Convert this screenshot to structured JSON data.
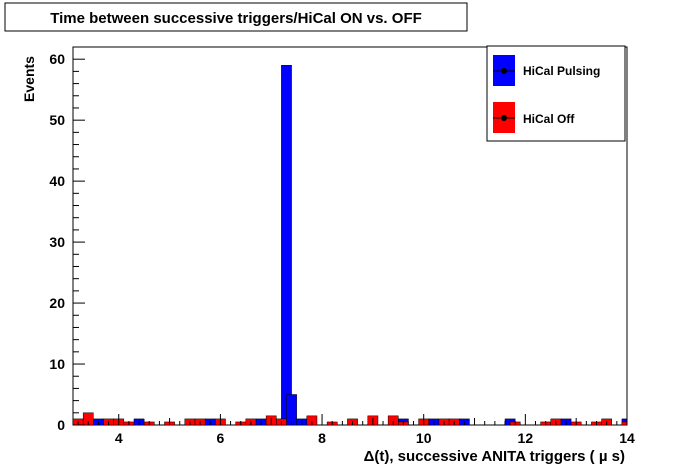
{
  "chart_data": {
    "type": "bar",
    "title": "Time between successive triggers/HiCal ON vs. OFF",
    "xlabel": "Δ(t), successive ANITA triggers (   µ s)",
    "ylabel": "Events",
    "xlim": [
      3.1,
      14.0
    ],
    "ylim": [
      0,
      62
    ],
    "bin_width": 0.2,
    "x_major_ticks": [
      4,
      6,
      8,
      10,
      12,
      14
    ],
    "x_tick_labels": [
      "4",
      "6",
      "8",
      "10",
      "12",
      "14"
    ],
    "y_major_ticks": [
      0,
      10,
      20,
      30,
      40,
      50,
      60
    ],
    "y_tick_labels": [
      "0",
      "10",
      "20",
      "30",
      "40",
      "50",
      "60"
    ],
    "legend_position": "top-right",
    "series": [
      {
        "name": "HiCal Pulsing",
        "color": "#0000ff",
        "bins": [
          {
            "x": 3.5,
            "y": 1
          },
          {
            "x": 4.3,
            "y": 1
          },
          {
            "x": 5.7,
            "y": 1
          },
          {
            "x": 6.7,
            "y": 1
          },
          {
            "x": 7.2,
            "y": 59
          },
          {
            "x": 7.3,
            "y": 5
          },
          {
            "x": 7.5,
            "y": 1
          },
          {
            "x": 9.5,
            "y": 1
          },
          {
            "x": 10.1,
            "y": 1
          },
          {
            "x": 10.7,
            "y": 1
          },
          {
            "x": 11.6,
            "y": 1
          },
          {
            "x": 12.7,
            "y": 1
          },
          {
            "x": 13.9,
            "y": 1
          }
        ]
      },
      {
        "name": "HiCal Off",
        "color": "#ff0000",
        "bins": [
          {
            "x": 3.1,
            "y": 1
          },
          {
            "x": 3.3,
            "y": 2
          },
          {
            "x": 3.7,
            "y": 1
          },
          {
            "x": 3.9,
            "y": 1
          },
          {
            "x": 4.1,
            "y": 0.5
          },
          {
            "x": 4.5,
            "y": 0.5
          },
          {
            "x": 4.9,
            "y": 0.5
          },
          {
            "x": 5.3,
            "y": 1
          },
          {
            "x": 5.5,
            "y": 1
          },
          {
            "x": 5.9,
            "y": 1
          },
          {
            "x": 6.3,
            "y": 0.5
          },
          {
            "x": 6.5,
            "y": 1
          },
          {
            "x": 6.9,
            "y": 1.5
          },
          {
            "x": 7.1,
            "y": 1
          },
          {
            "x": 7.7,
            "y": 1.5
          },
          {
            "x": 8.1,
            "y": 0.5
          },
          {
            "x": 8.5,
            "y": 1
          },
          {
            "x": 8.9,
            "y": 1.5
          },
          {
            "x": 9.3,
            "y": 1.5
          },
          {
            "x": 9.5,
            "y": 0.5
          },
          {
            "x": 9.9,
            "y": 1
          },
          {
            "x": 10.3,
            "y": 1
          },
          {
            "x": 10.5,
            "y": 1
          },
          {
            "x": 11.7,
            "y": 0.5
          },
          {
            "x": 12.3,
            "y": 0.5
          },
          {
            "x": 12.5,
            "y": 1
          },
          {
            "x": 12.9,
            "y": 0.5
          },
          {
            "x": 13.3,
            "y": 0.5
          },
          {
            "x": 13.5,
            "y": 1
          },
          {
            "x": 13.9,
            "y": 0.5
          }
        ]
      }
    ]
  }
}
